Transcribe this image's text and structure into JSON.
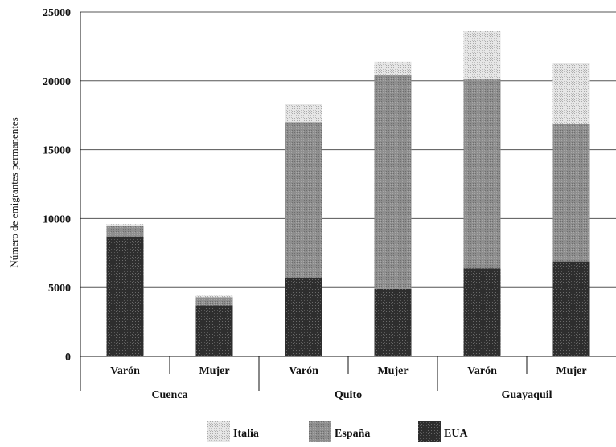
{
  "chart_data": {
    "type": "bar",
    "stacked": true,
    "ylabel": "Número de emigrantes permanentes",
    "ylim": [
      0,
      25000
    ],
    "yticks": [
      0,
      5000,
      10000,
      15000,
      20000,
      25000
    ],
    "ytick_labels": [
      "0",
      "5000",
      "10000",
      "15000",
      "20000",
      "25000"
    ],
    "grid": true,
    "groups": [
      {
        "name": "Cuenca",
        "categories": [
          "Varón",
          "Mujer"
        ]
      },
      {
        "name": "Quito",
        "categories": [
          "Varón",
          "Mujer"
        ]
      },
      {
        "name": "Guayaquil",
        "categories": [
          "Varón",
          "Mujer"
        ]
      }
    ],
    "series": [
      {
        "name": "EUA",
        "color": "#2b2b2b",
        "values": [
          8700,
          3700,
          5700,
          4900,
          6400,
          6900
        ]
      },
      {
        "name": "España",
        "color": "#8a8a8a",
        "values": [
          800,
          600,
          11300,
          15500,
          13700,
          10000
        ]
      },
      {
        "name": "Italia",
        "color": "#cfcfcf",
        "values": [
          100,
          100,
          1300,
          1000,
          3500,
          4400
        ]
      }
    ],
    "legend_order": [
      "Italia",
      "España",
      "EUA"
    ],
    "legend_position": "bottom"
  }
}
